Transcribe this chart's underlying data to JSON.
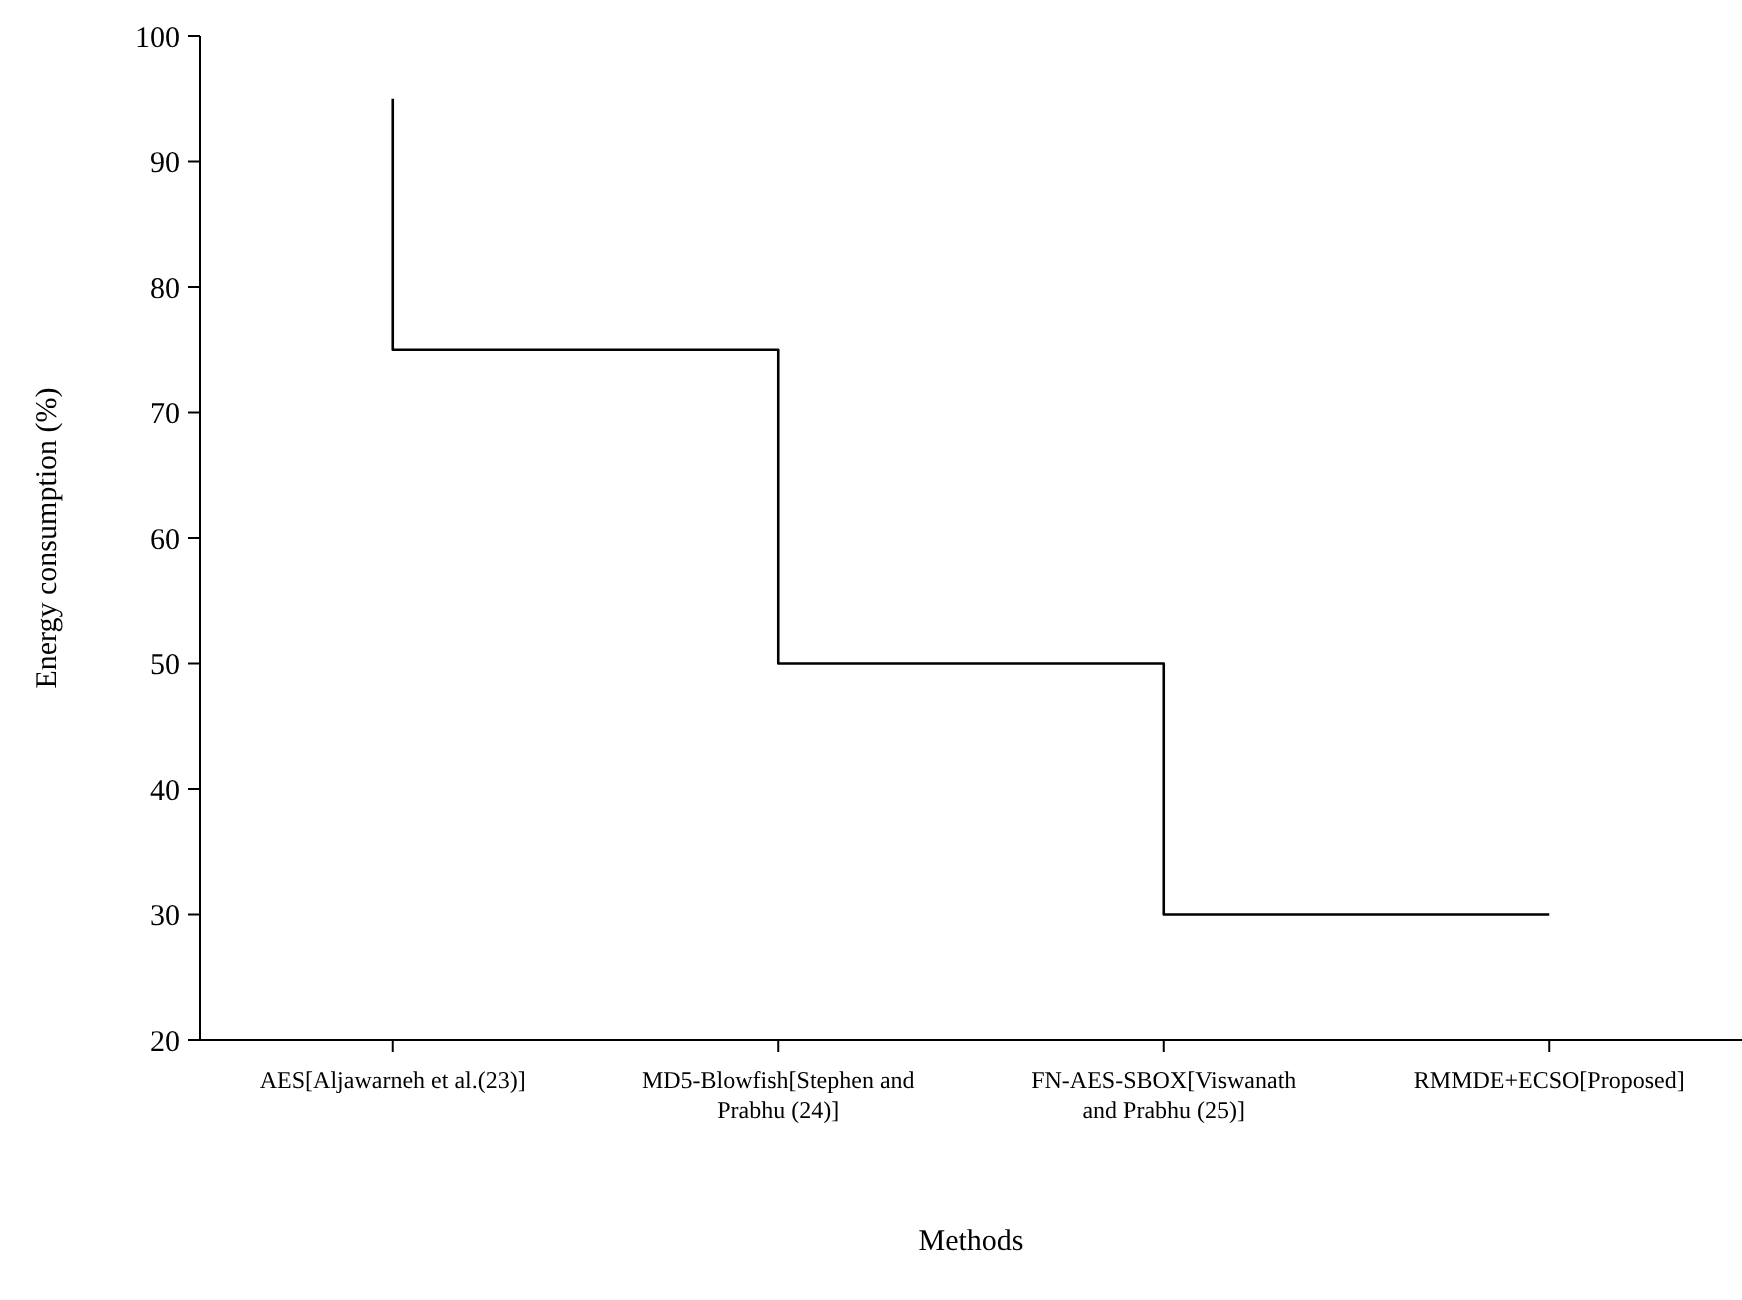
{
  "chart_data": {
    "type": "step",
    "xlabel": "Methods",
    "ylabel": "Energy consumption (%)",
    "categories": [
      "AES[Aljawarneh et al.(23)]",
      "MD5-Blowfish[Stephen and Prabhu (24)]",
      "FN-AES-SBOX[Viswanath and Prabhu (25)]",
      "RMMDE+ECSO[Proposed]"
    ],
    "values": [
      95,
      75,
      50,
      30
    ],
    "color": "#000000",
    "ylim": [
      20,
      100
    ],
    "yticks": [
      20,
      30,
      40,
      50,
      60,
      70,
      80,
      90,
      100
    ],
    "grid": false,
    "marker": "none",
    "line_style": "solid"
  }
}
